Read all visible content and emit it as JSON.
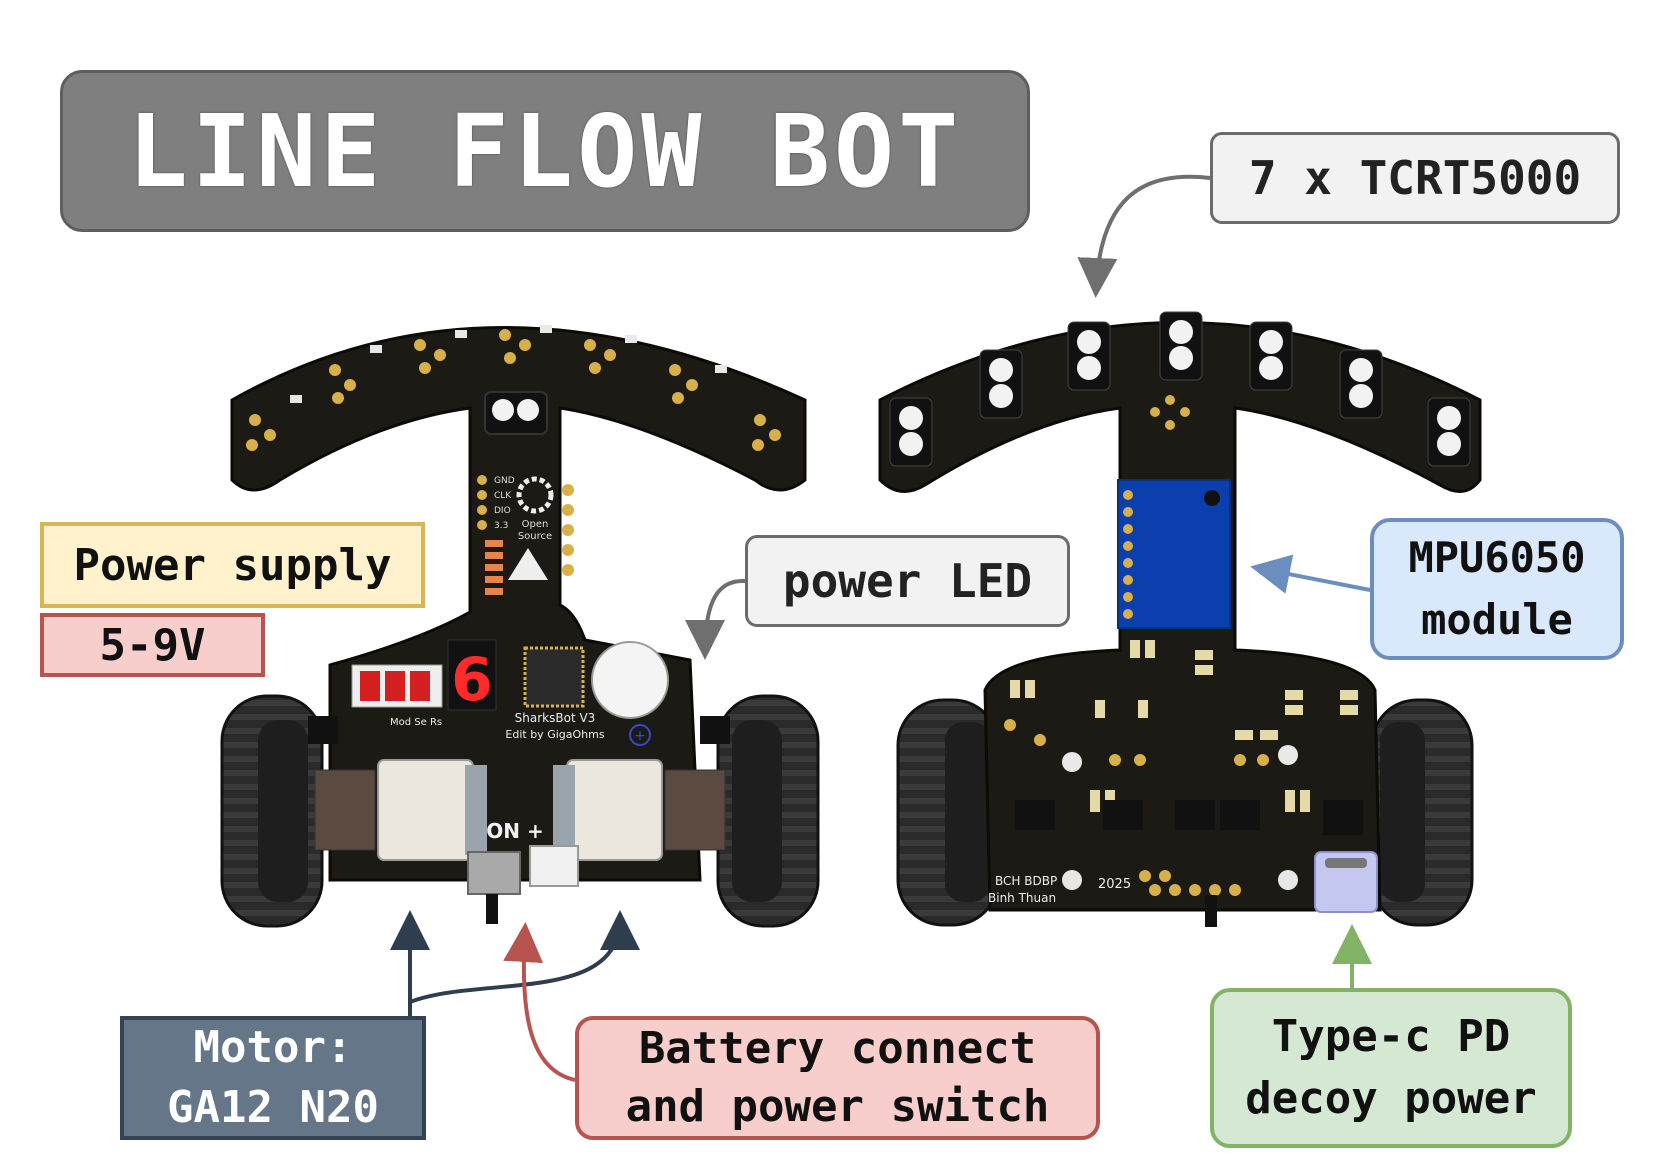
{
  "title": "LINE FLOW BOT",
  "labels": {
    "sensor": "7 x TCRT5000",
    "power_supply": "Power supply",
    "voltage": "5-9V",
    "power_led": "power LED",
    "mpu": "MPU6050\nmodule",
    "motor": "Motor:\nGA12 N20",
    "battery": "Battery connect\nand power switch",
    "typec": "Type-c PD\ndecoy power"
  },
  "board_front": {
    "name": "SharksBot V3",
    "edit": "Edit by GigaOhms",
    "open_source": "Open\nSource",
    "pins": [
      "GND",
      "CLK",
      "DIO",
      "3.3"
    ],
    "switch_label": "ON +",
    "button_labels": [
      "Mod",
      "Se",
      "Rs"
    ],
    "digit": "6"
  },
  "board_back": {
    "credit_1": "BCH BDBP",
    "credit_2": "Binh Thuan",
    "year": "2025"
  },
  "colors": {
    "pcb": "#1c1a14",
    "mpu_blue": "#0b3fae",
    "arrow_gray": "#6f6f6f",
    "arrow_blue": "#6c8ebf",
    "arrow_dark": "#2f3e4e",
    "arrow_red": "#b85450",
    "arrow_green": "#82b366"
  }
}
